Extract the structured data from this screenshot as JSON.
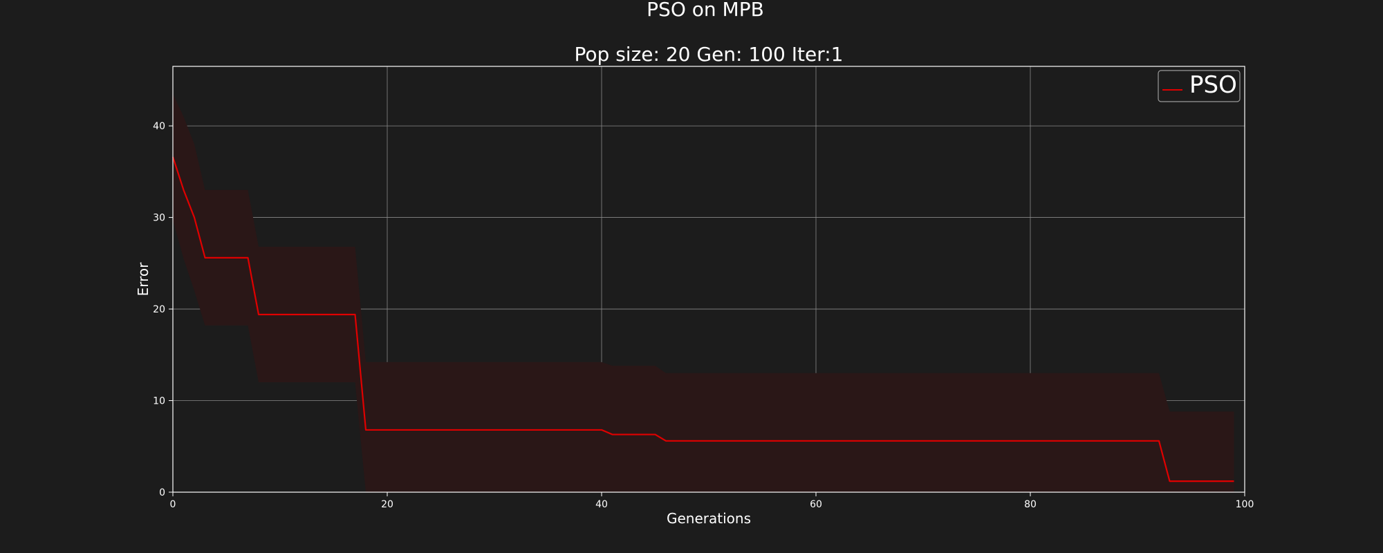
{
  "chart_data": {
    "type": "line",
    "title": "PSO on MPB",
    "subtitle": "Pop size: 20  Gen: 100  Iter:1",
    "xlabel": "Generations",
    "ylabel": "Error",
    "xlim": [
      0,
      100
    ],
    "ylim": [
      0,
      46.5
    ],
    "xticks": [
      0,
      20,
      40,
      60,
      80,
      100
    ],
    "yticks": [
      0,
      10,
      20,
      30,
      40
    ],
    "grid": true,
    "legend_position": "top-right",
    "series": [
      {
        "name": "PSO",
        "color": "#e00000",
        "band_color": "#2a1717",
        "points": [
          [
            0,
            36.6
          ],
          [
            1,
            33.0
          ],
          [
            2,
            30.0
          ],
          [
            3,
            25.6
          ],
          [
            7,
            25.6
          ],
          [
            8,
            19.4
          ],
          [
            17,
            19.4
          ],
          [
            18,
            6.8
          ],
          [
            40,
            6.8
          ],
          [
            41,
            6.3
          ],
          [
            45,
            6.3
          ],
          [
            46,
            5.6
          ],
          [
            92,
            5.6
          ],
          [
            93,
            1.2
          ],
          [
            99,
            1.2
          ]
        ],
        "band_upper": [
          [
            0,
            43.5
          ],
          [
            1,
            41.0
          ],
          [
            2,
            38.0
          ],
          [
            3,
            33.0
          ],
          [
            7,
            33.0
          ],
          [
            8,
            26.8
          ],
          [
            17,
            26.8
          ],
          [
            18,
            14.2
          ],
          [
            40,
            14.2
          ],
          [
            41,
            13.8
          ],
          [
            45,
            13.8
          ],
          [
            46,
            13.0
          ],
          [
            92,
            13.0
          ],
          [
            93,
            8.8
          ],
          [
            99,
            8.8
          ]
        ],
        "band_lower": [
          [
            0,
            29.7
          ],
          [
            1,
            25.5
          ],
          [
            2,
            22.0
          ],
          [
            3,
            18.2
          ],
          [
            7,
            18.2
          ],
          [
            8,
            12.0
          ],
          [
            17,
            12.0
          ],
          [
            18,
            0.0
          ],
          [
            40,
            0.0
          ],
          [
            41,
            0.0
          ],
          [
            45,
            0.0
          ],
          [
            46,
            0.0
          ],
          [
            92,
            0.0
          ],
          [
            93,
            0.0
          ],
          [
            99,
            0.0
          ]
        ]
      }
    ]
  }
}
